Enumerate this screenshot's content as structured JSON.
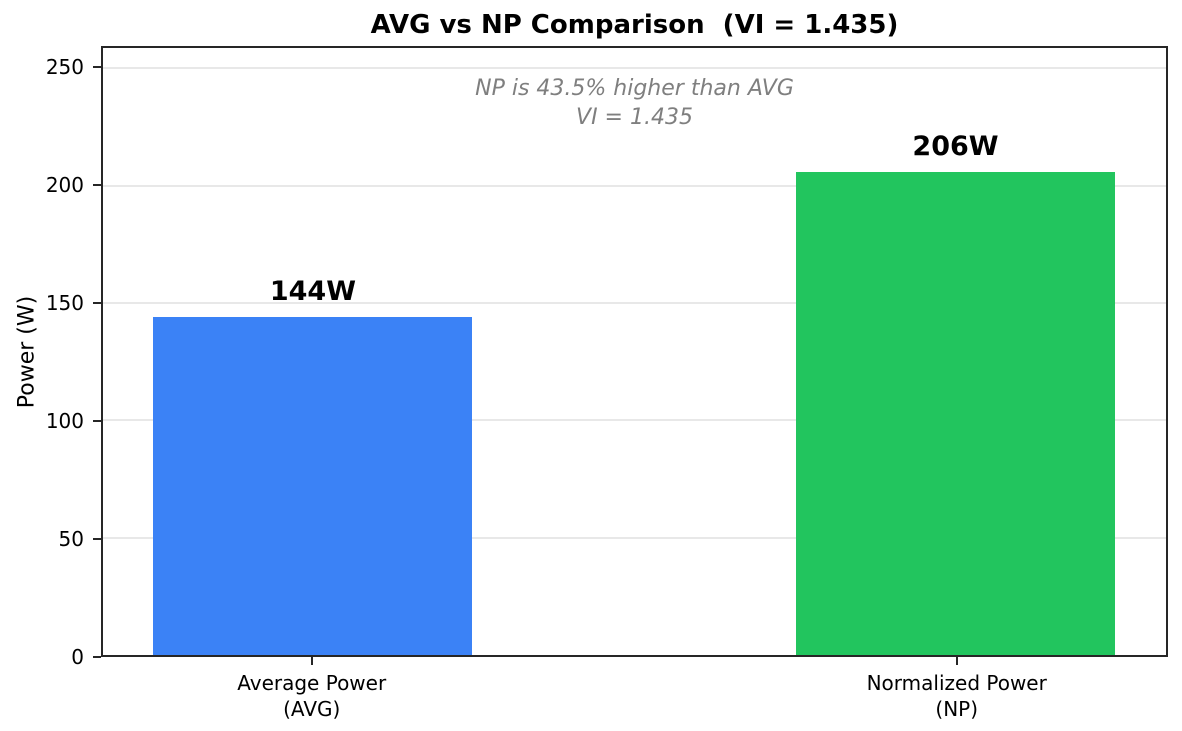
{
  "chart_data": {
    "type": "bar",
    "title": "AVG vs NP Comparison  (VI = 1.435)",
    "categories": [
      "Average Power\n(AVG)",
      "Normalized Power\n(NP)"
    ],
    "values": [
      144,
      206
    ],
    "bar_labels": [
      "144W",
      "206W"
    ],
    "bar_names": [
      "bar-average-power",
      "bar-normalized-power"
    ],
    "series": [
      {
        "name": "Average Power (AVG)",
        "value": 144,
        "color": "#3b82f6"
      },
      {
        "name": "Normalized Power (NP)",
        "value": 206,
        "color": "#22c55e"
      }
    ],
    "annotation_lines": [
      "NP is 43.5% higher than AVG",
      "VI = 1.435"
    ],
    "xlabel": "",
    "ylabel": "Power (W)",
    "ylim": [
      0,
      258.7
    ],
    "yticks": [
      0,
      50,
      100,
      150,
      200,
      250
    ],
    "grid": "horizontal",
    "legend": "none",
    "colors": {
      "bar_avg": "#3b82f6",
      "bar_np": "#22c55e",
      "grid": "#e8e8e8",
      "spine": "#262626",
      "annotation_text": "#7f7f7f",
      "text": "#000000",
      "background": "#ffffff"
    }
  }
}
